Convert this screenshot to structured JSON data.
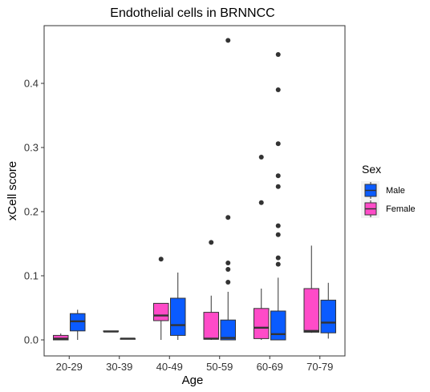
{
  "chart_data": {
    "type": "boxplot",
    "title": "Endothelial cells in BRNNCC",
    "xlabel": "Age",
    "ylabel": "xCell score",
    "ylim": [
      -0.025,
      0.49
    ],
    "yticks": [
      "0.0",
      "0.1",
      "0.2",
      "0.3",
      "0.4"
    ],
    "categories": [
      "20-29",
      "30-39",
      "40-49",
      "50-59",
      "60-69",
      "70-79"
    ],
    "legend": {
      "title": "Sex",
      "position": "right",
      "entries": [
        "Male",
        "Female"
      ]
    },
    "colors": {
      "Female": "#FF4BC8",
      "Male": "#0A5BFF"
    },
    "series": [
      {
        "name": "Female",
        "boxes": [
          {
            "category": "20-29",
            "lower": 0.0,
            "q1": 0.0,
            "median": 0.002,
            "q3": 0.007,
            "upper": 0.01,
            "outliers": []
          },
          {
            "category": "30-39",
            "lower": 0.013,
            "q1": 0.013,
            "median": 0.013,
            "q3": 0.014,
            "upper": 0.014,
            "outliers": []
          },
          {
            "category": "40-49",
            "lower": 0.0,
            "q1": 0.03,
            "median": 0.038,
            "q3": 0.057,
            "upper": 0.057,
            "outliers": [
              0.126
            ]
          },
          {
            "category": "50-59",
            "lower": 0.0,
            "q1": 0.001,
            "median": 0.002,
            "q3": 0.043,
            "upper": 0.069,
            "outliers": [
              0.152
            ]
          },
          {
            "category": "60-69",
            "lower": 0.0,
            "q1": 0.002,
            "median": 0.019,
            "q3": 0.049,
            "upper": 0.08,
            "outliers": [
              0.214,
              0.285
            ]
          },
          {
            "category": "70-79",
            "lower": 0.011,
            "q1": 0.012,
            "median": 0.014,
            "q3": 0.08,
            "upper": 0.147,
            "outliers": []
          }
        ]
      },
      {
        "name": "Male",
        "boxes": [
          {
            "category": "20-29",
            "lower": 0.0,
            "q1": 0.014,
            "median": 0.029,
            "q3": 0.041,
            "upper": 0.047,
            "outliers": []
          },
          {
            "category": "30-39",
            "lower": 0.001,
            "q1": 0.001,
            "median": 0.002,
            "q3": 0.002,
            "upper": 0.003,
            "outliers": []
          },
          {
            "category": "40-49",
            "lower": 0.0,
            "q1": 0.007,
            "median": 0.023,
            "q3": 0.065,
            "upper": 0.105,
            "outliers": []
          },
          {
            "category": "50-59",
            "lower": 0.0,
            "q1": 0.0,
            "median": 0.003,
            "q3": 0.031,
            "upper": 0.075,
            "outliers": [
              0.09,
              0.11,
              0.12,
              0.191,
              0.467
            ]
          },
          {
            "category": "60-69",
            "lower": 0.0,
            "q1": 0.0,
            "median": 0.009,
            "q3": 0.045,
            "upper": 0.097,
            "outliers": [
              0.118,
              0.128,
              0.164,
              0.178,
              0.239,
              0.256,
              0.306,
              0.39,
              0.445
            ]
          },
          {
            "category": "70-79",
            "lower": 0.002,
            "q1": 0.011,
            "median": 0.027,
            "q3": 0.062,
            "upper": 0.089,
            "outliers": []
          }
        ]
      }
    ]
  }
}
